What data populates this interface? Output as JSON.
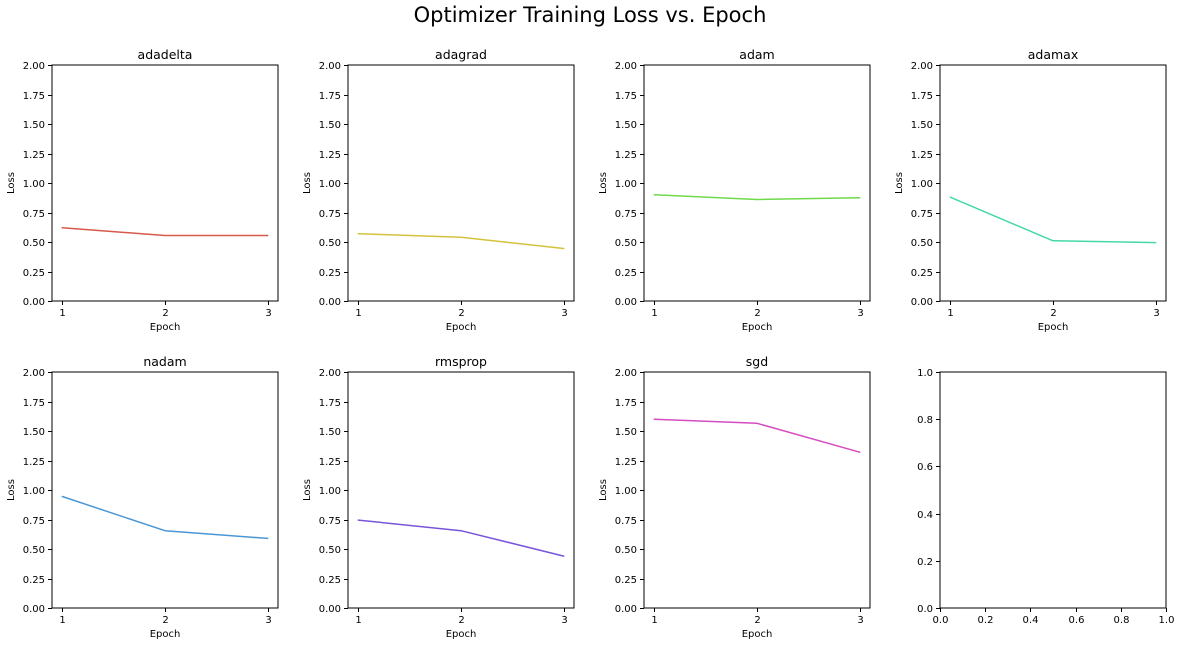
{
  "figure": {
    "suptitle": "Optimizer Training Loss vs. Epoch"
  },
  "chart_data": [
    {
      "type": "line",
      "title": "adadelta",
      "xlabel": "Epoch",
      "ylabel": "Loss",
      "x": [
        1,
        2,
        3
      ],
      "values": [
        0.62,
        0.555,
        0.555
      ],
      "color": "#d65a4a",
      "ylim": [
        0,
        2
      ],
      "yticks": [
        "0.00",
        "0.25",
        "0.50",
        "0.75",
        "1.00",
        "1.25",
        "1.50",
        "1.75",
        "2.00"
      ],
      "xticks": [
        "1",
        "2",
        "3"
      ]
    },
    {
      "type": "line",
      "title": "adagrad",
      "xlabel": "Epoch",
      "ylabel": "Loss",
      "x": [
        1,
        2,
        3
      ],
      "values": [
        0.57,
        0.54,
        0.445
      ],
      "color": "#d4c23a",
      "ylim": [
        0,
        2
      ],
      "yticks": [
        "0.00",
        "0.25",
        "0.50",
        "0.75",
        "1.00",
        "1.25",
        "1.50",
        "1.75",
        "2.00"
      ],
      "xticks": [
        "1",
        "2",
        "3"
      ]
    },
    {
      "type": "line",
      "title": "adam",
      "xlabel": "Epoch",
      "ylabel": "Loss",
      "x": [
        1,
        2,
        3
      ],
      "values": [
        0.9,
        0.86,
        0.875
      ],
      "color": "#6fd94a",
      "ylim": [
        0,
        2
      ],
      "yticks": [
        "0.00",
        "0.25",
        "0.50",
        "0.75",
        "1.00",
        "1.25",
        "1.50",
        "1.75",
        "2.00"
      ],
      "xticks": [
        "1",
        "2",
        "3"
      ]
    },
    {
      "type": "line",
      "title": "adamax",
      "xlabel": "Epoch",
      "ylabel": "Loss",
      "x": [
        1,
        2,
        3
      ],
      "values": [
        0.88,
        0.51,
        0.495
      ],
      "color": "#45d9a8",
      "ylim": [
        0,
        2
      ],
      "yticks": [
        "0.00",
        "0.25",
        "0.50",
        "0.75",
        "1.00",
        "1.25",
        "1.50",
        "1.75",
        "2.00"
      ],
      "xticks": [
        "1",
        "2",
        "3"
      ]
    },
    {
      "type": "line",
      "title": "nadam",
      "xlabel": "Epoch",
      "ylabel": "Loss",
      "x": [
        1,
        2,
        3
      ],
      "values": [
        0.945,
        0.655,
        0.59
      ],
      "color": "#4a97d6",
      "ylim": [
        0,
        2
      ],
      "yticks": [
        "0.00",
        "0.25",
        "0.50",
        "0.75",
        "1.00",
        "1.25",
        "1.50",
        "1.75",
        "2.00"
      ],
      "xticks": [
        "1",
        "2",
        "3"
      ]
    },
    {
      "type": "line",
      "title": "rmsprop",
      "xlabel": "Epoch",
      "ylabel": "Loss",
      "x": [
        1,
        2,
        3
      ],
      "values": [
        0.745,
        0.655,
        0.44
      ],
      "color": "#7a55d9",
      "ylim": [
        0,
        2
      ],
      "yticks": [
        "0.00",
        "0.25",
        "0.50",
        "0.75",
        "1.00",
        "1.25",
        "1.50",
        "1.75",
        "2.00"
      ],
      "xticks": [
        "1",
        "2",
        "3"
      ]
    },
    {
      "type": "line",
      "title": "sgd",
      "xlabel": "Epoch",
      "ylabel": "Loss",
      "x": [
        1,
        2,
        3
      ],
      "values": [
        1.6,
        1.565,
        1.32
      ],
      "color": "#d64cc2",
      "ylim": [
        0,
        2
      ],
      "yticks": [
        "0.00",
        "0.25",
        "0.50",
        "0.75",
        "1.00",
        "1.25",
        "1.50",
        "1.75",
        "2.00"
      ],
      "xticks": [
        "1",
        "2",
        "3"
      ]
    },
    {
      "type": "line",
      "title": "",
      "xlabel": "",
      "ylabel": "",
      "x": [],
      "values": [],
      "color": "#000000",
      "xlim": [
        0,
        1
      ],
      "ylim": [
        0,
        1
      ],
      "yticks": [
        "0.0",
        "0.2",
        "0.4",
        "0.6",
        "0.8",
        "1.0"
      ],
      "xticks": [
        "0.0",
        "0.2",
        "0.4",
        "0.6",
        "0.8",
        "1.0"
      ]
    }
  ]
}
